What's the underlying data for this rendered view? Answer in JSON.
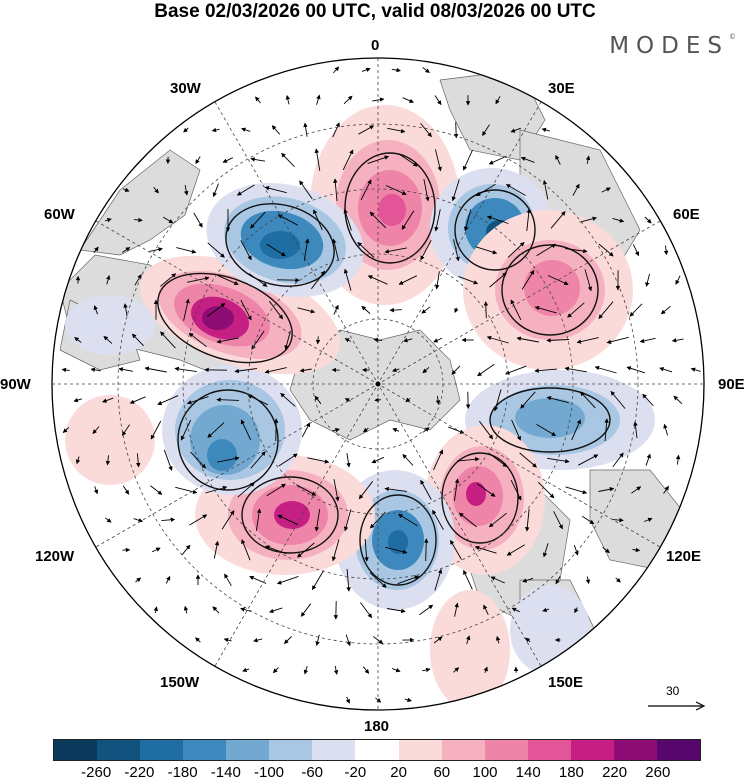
{
  "title": "Base 02/03/2026 00 UTC, valid 08/03/2026 00 UTC",
  "brand": "MODES",
  "brand_mark": "©",
  "longitude_labels": {
    "top": "0",
    "upper_right": "30E",
    "right_upper": "60E",
    "right": "90E",
    "right_lower": "120E",
    "lower_right": "150E",
    "bottom": "180",
    "lower_left": "150W",
    "left_lower": "120W",
    "left": "90W",
    "left_upper": "60W",
    "upper_left": "30W"
  },
  "vector_reference": "30",
  "colorbar": {
    "colors": [
      "#0b3a5c",
      "#12527e",
      "#1e6ea3",
      "#3d89bd",
      "#73a9d1",
      "#a9c7e2",
      "#dcdff0",
      "#ffffff",
      "#fbdada",
      "#f6b1c0",
      "#ef84a9",
      "#e25597",
      "#c51f83",
      "#8e0d75",
      "#57066e"
    ],
    "ticks": [
      "-260",
      "-220",
      "-180",
      "-140",
      "-100",
      "-60",
      "-20",
      "20",
      "60",
      "100",
      "140",
      "180",
      "220",
      "260"
    ]
  },
  "colors": {
    "land": "#dcdcdc",
    "outline": "#333333",
    "grid": "#444444"
  }
}
